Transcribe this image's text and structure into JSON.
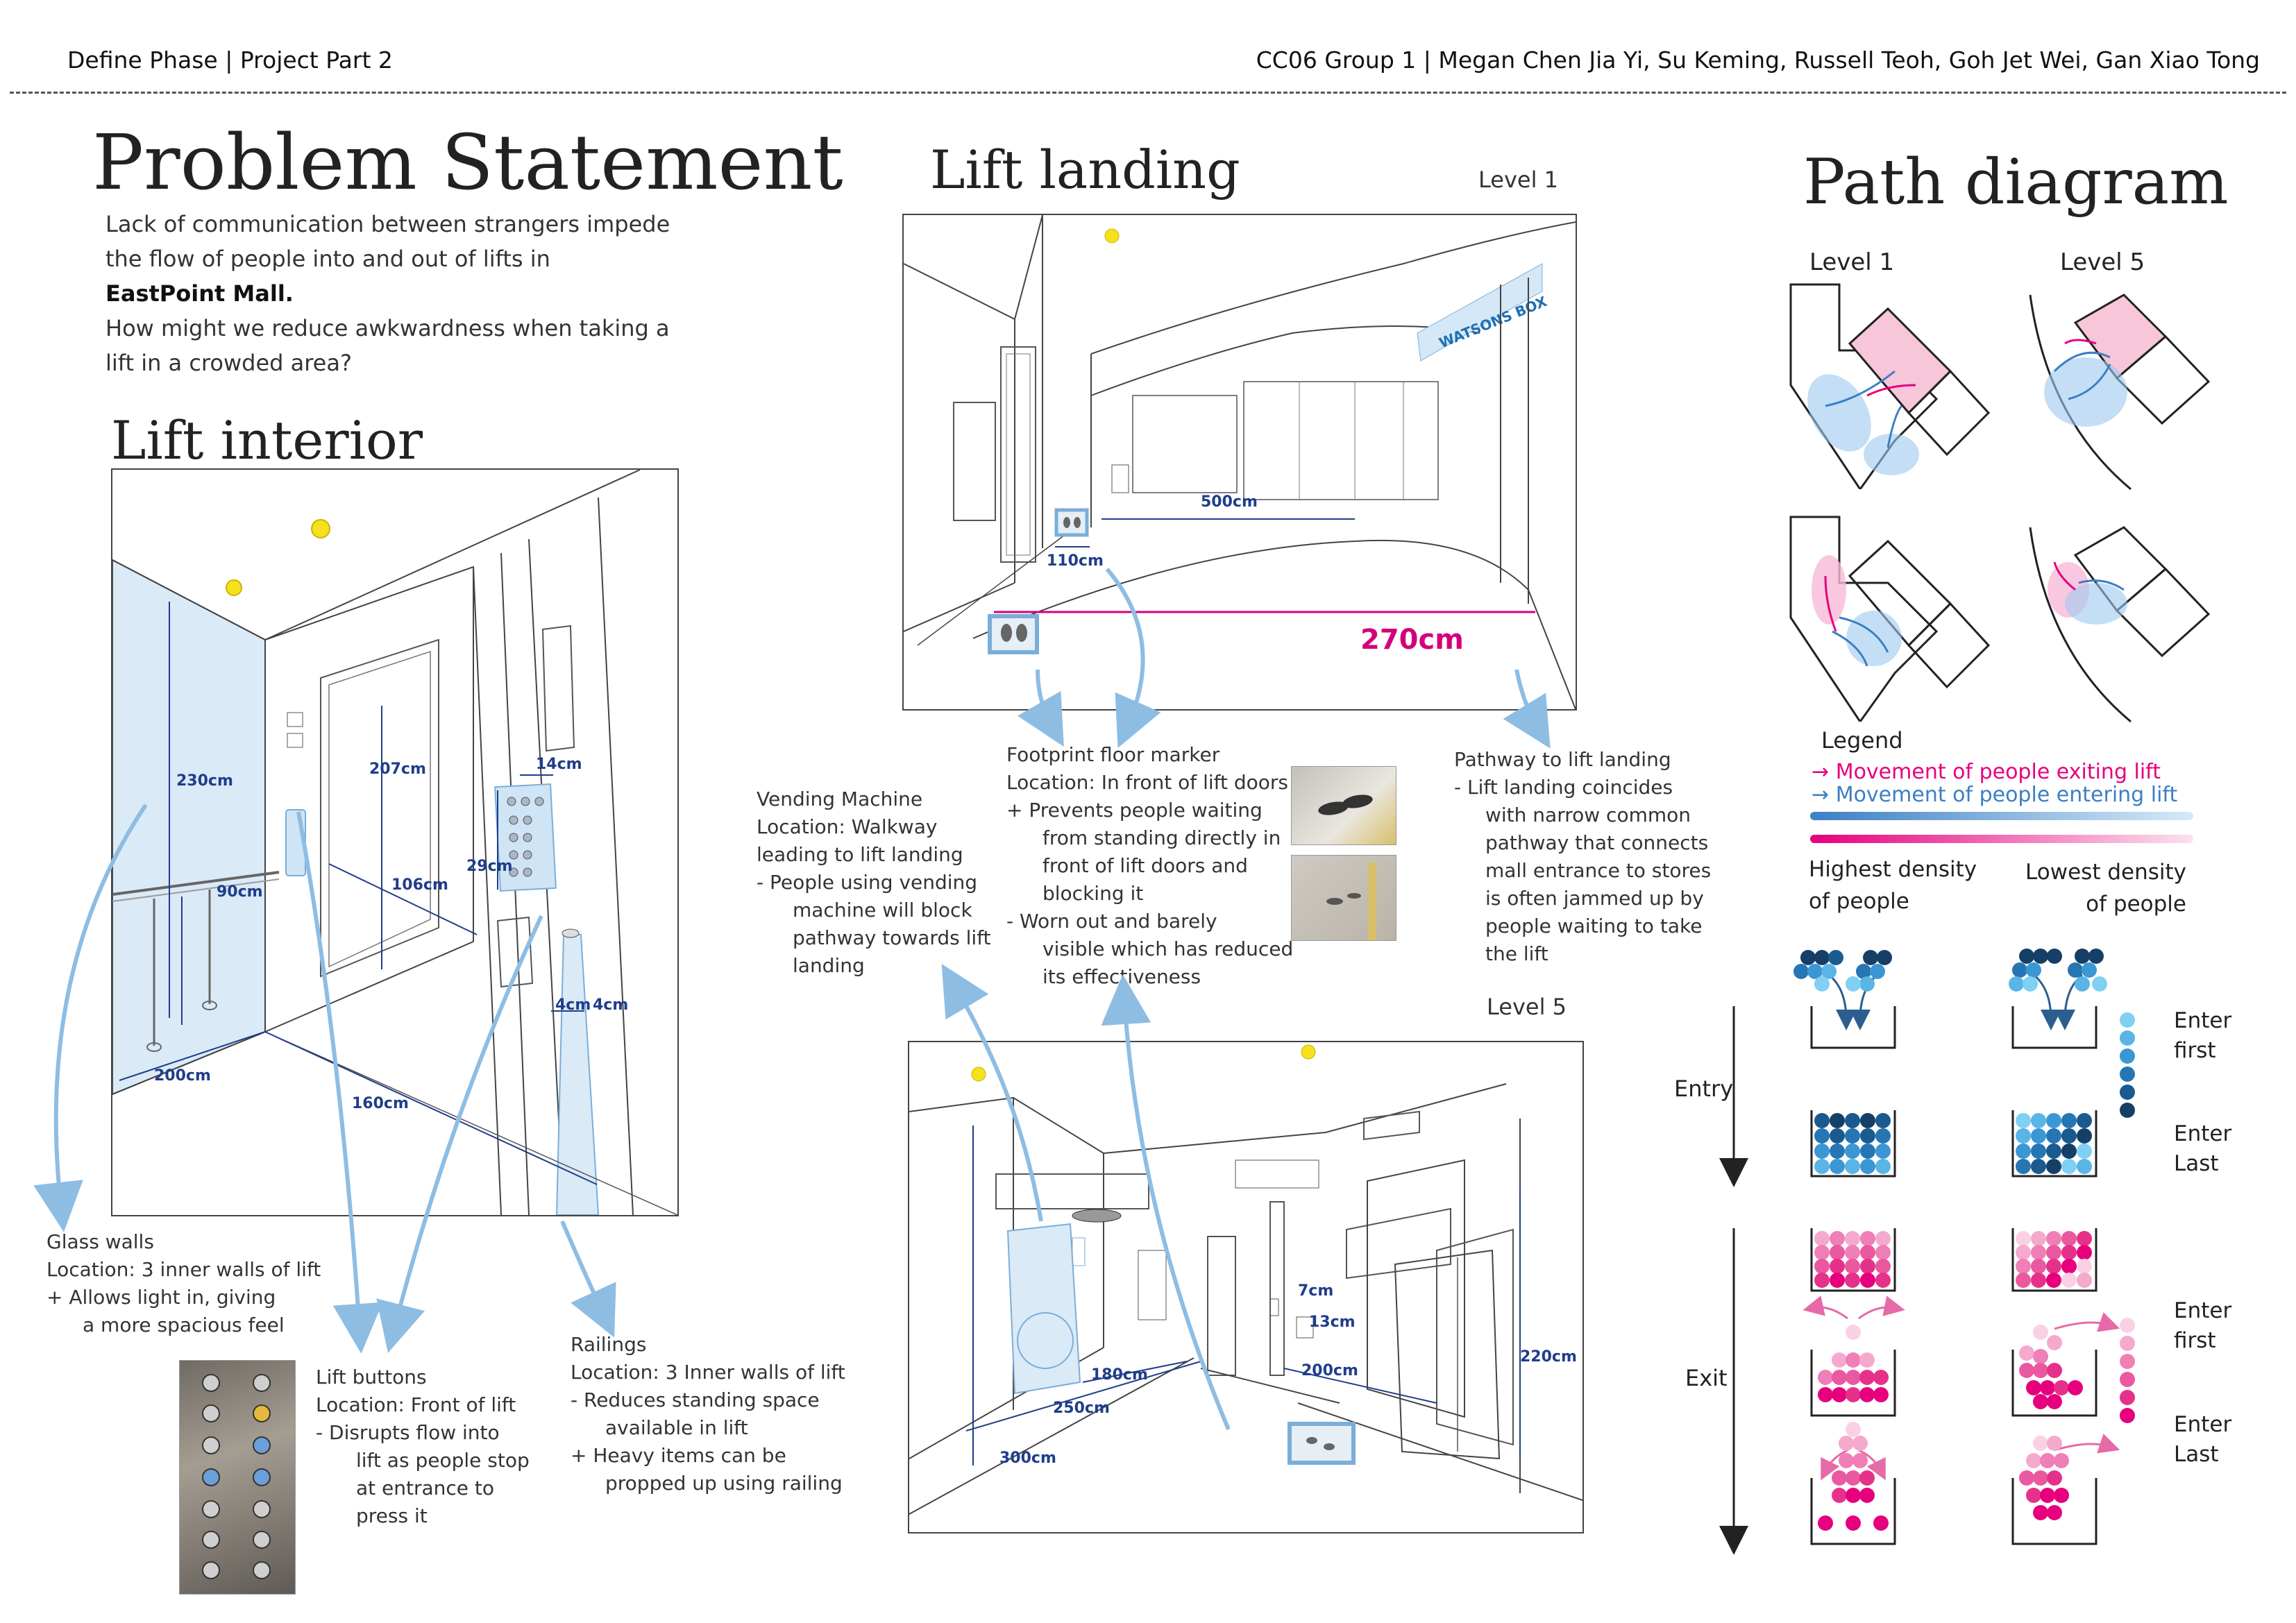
{
  "header": {
    "left": "Define Phase | Project Part 2",
    "right": "CC06 Group 1 | Megan Chen Jia Yi, Su Keming, Russell Teoh, Goh Jet Wei, Gan Xiao Tong"
  },
  "problem": {
    "title": "Problem Statement",
    "line1": "Lack of communication between strangers impede",
    "line2": "the flow of people into and out of lifts in",
    "mall": "EastPoint Mall.",
    "line3": "How might we reduce awkwardness when taking a",
    "line4": "lift in a crowded area?"
  },
  "interior": {
    "title": "Lift interior",
    "dims": {
      "d230": "230cm",
      "d207": "207cm",
      "d90": "90cm",
      "d106": "106cm",
      "d200": "200cm",
      "d160": "160cm",
      "d14": "14cm",
      "d29": "29cm",
      "d4a": "4cm",
      "d4b": "4cm"
    }
  },
  "glass": {
    "title": "Glass walls",
    "loc": "Location: 3 inner walls of lift",
    "b1": "+    Allows light in, giving",
    "b2": "a more spacious feel"
  },
  "buttons": {
    "title": "Lift buttons",
    "loc": "Location: Front of lift",
    "b1": "-     Disrupts flow into",
    "b2": "lift as people stop",
    "b3": "at entrance to",
    "b4": "press it"
  },
  "railings": {
    "title": "Railings",
    "loc": "Location: 3 Inner walls of lift",
    "b1": "-     Reduces standing space",
    "b2": "available in lift",
    "b3": "+    Heavy items can be",
    "b4": "propped up using railing"
  },
  "landing": {
    "title": "Lift landing",
    "level1": "Level 1",
    "level5": "Level 5",
    "dims1": {
      "d500": "500cm",
      "d110": "110cm",
      "d270": "270cm"
    },
    "dims5": {
      "d7": "7cm",
      "d13": "13cm",
      "d180": "180cm",
      "d200": "200cm",
      "d250": "250cm",
      "d220": "220cm",
      "d300": "300cm"
    },
    "sign": "WATSONS BOX"
  },
  "vending": {
    "title": "Vending Machine",
    "loc1": "Location: Walkway",
    "loc2": "leading to lift landing",
    "b1": "-     People using vending",
    "b2": "machine will block",
    "b3": "pathway towards lift",
    "b4": "landing"
  },
  "footprint": {
    "title": "Footprint floor marker",
    "loc": "Location: In front of lift doors",
    "b1": "+     Prevents people waiting",
    "b2": "from standing directly in",
    "b3": "front of lift doors and",
    "b4": "blocking it",
    "b5": "-      Worn out and barely",
    "b6": "visible which has reduced",
    "b7": "its effectiveness"
  },
  "pathway": {
    "title": "Pathway to lift landing",
    "b1": "-      Lift landing coincides",
    "b2": "with narrow common",
    "b3": "pathway that connects",
    "b4": "mall entrance to stores",
    "b5": "is often jammed up by",
    "b6": "people waiting to take",
    "b7": "the lift"
  },
  "path": {
    "title": "Path diagram",
    "level1": "Level 1",
    "level5": "Level 5",
    "legend": {
      "title": "Legend",
      "exit": "Movement of people exiting lift",
      "enter": "Movement of people entering lift",
      "high1": "Highest density",
      "high2": "of people",
      "low1": "Lowest density",
      "low2": "of people"
    },
    "entry": "Entry",
    "exit": "Exit",
    "enter_first": "Enter",
    "enter_first2": "first",
    "enter_last": "Enter",
    "enter_last2": "Last"
  },
  "colors": {
    "blue_dark": "#1a4f7a",
    "blue": "#3b7fc4",
    "blue_light": "#7fc4ec",
    "pink": "#e6007e",
    "pink_light": "#f7b9d8",
    "dim": "#1f3d8a",
    "magenta": "#d4007a",
    "glass": "#dbeaf7"
  }
}
